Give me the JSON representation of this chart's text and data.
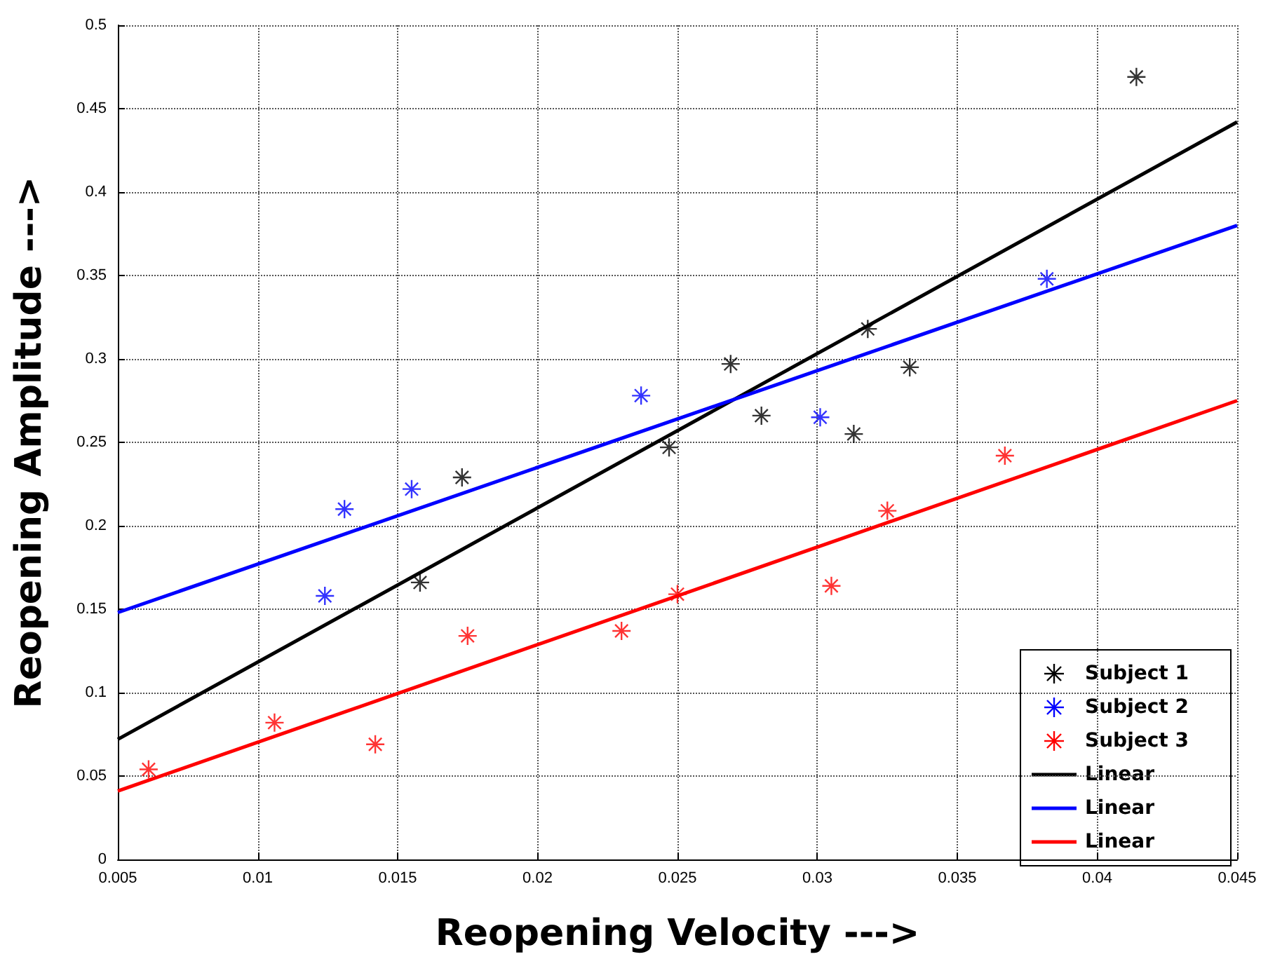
{
  "chart_data": {
    "type": "scatter",
    "xlabel": "Reopening Velocity --->",
    "ylabel": "Reopening Amplitude --->",
    "xlim": [
      0.005,
      0.045
    ],
    "xticks": [
      0.005,
      0.01,
      0.015,
      0.02,
      0.025,
      0.03,
      0.035,
      0.04,
      0.045
    ],
    "ylim": [
      0,
      0.5
    ],
    "yticks": [
      0,
      0.05,
      0.1,
      0.15,
      0.2,
      0.25,
      0.3,
      0.35,
      0.4,
      0.45,
      0.5
    ],
    "grid": true,
    "legend": "bottom right",
    "series": [
      {
        "name": "Subject 1",
        "color": "#000000",
        "marker": "cross",
        "x": [
          0.0158,
          0.0173,
          0.0247,
          0.0269,
          0.028,
          0.0313,
          0.0318,
          0.0333,
          0.0414
        ],
        "values": [
          0.166,
          0.229,
          0.247,
          0.297,
          0.266,
          0.255,
          0.318,
          0.295,
          0.469
        ]
      },
      {
        "name": "Subject 2",
        "color": "#0000ff",
        "marker": "cross",
        "x": [
          0.0124,
          0.0131,
          0.0155,
          0.0237,
          0.0301,
          0.0382
        ],
        "values": [
          0.158,
          0.21,
          0.222,
          0.278,
          0.265,
          0.348
        ]
      },
      {
        "name": "Subject 3",
        "color": "#ff0000",
        "marker": "cross",
        "x": [
          0.0061,
          0.0106,
          0.0142,
          0.0175,
          0.023,
          0.025,
          0.0305,
          0.0325,
          0.0367
        ],
        "values": [
          0.054,
          0.082,
          0.069,
          0.134,
          0.137,
          0.159,
          0.164,
          0.209,
          0.242
        ]
      },
      {
        "name": "Linear",
        "type": "line",
        "color": "#000000",
        "marker": "none",
        "line_style": "solid",
        "x": [
          0.005,
          0.045
        ],
        "values": [
          0.072,
          0.442
        ]
      },
      {
        "name": "Linear",
        "type": "line",
        "color": "#0000ff",
        "marker": "none",
        "line_style": "solid",
        "x": [
          0.005,
          0.045
        ],
        "values": [
          0.148,
          0.38
        ]
      },
      {
        "name": "Linear",
        "type": "line",
        "color": "#ff0000",
        "marker": "none",
        "line_style": "solid",
        "x": [
          0.005,
          0.045
        ],
        "values": [
          0.041,
          0.275
        ]
      }
    ]
  }
}
